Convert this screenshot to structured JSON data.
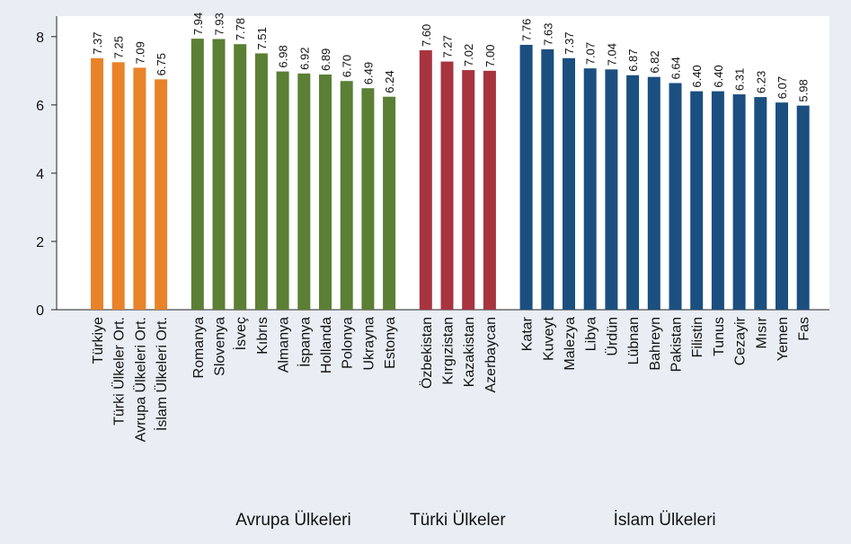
{
  "chart_data": {
    "type": "bar",
    "ylim": [
      0,
      8.6
    ],
    "yticks": [
      0,
      2,
      4,
      6,
      8
    ],
    "groups": [
      {
        "color": "#e8832a",
        "categories": [
          "Türkiye",
          "Türki Ülkeler Ort.",
          "Avrupa Ülkeleri Ort.",
          "İslam Ülkeleri Ort."
        ],
        "values": [
          7.37,
          7.25,
          7.09,
          6.75
        ],
        "value_labels": [
          "7.37",
          "7.25",
          "7.09",
          "6.75"
        ]
      },
      {
        "name": "Avrupa Ülkeleri",
        "color": "#5b7f35",
        "categories": [
          "Romanya",
          "Slovenya",
          "İsveç",
          "Kıbrıs",
          "Almanya",
          "İspanya",
          "Hollanda",
          "Polonya",
          "Ukrayna",
          "Estonya"
        ],
        "values": [
          7.94,
          7.93,
          7.78,
          7.51,
          6.98,
          6.92,
          6.89,
          6.7,
          6.49,
          6.24
        ],
        "value_labels": [
          "7.94",
          "7.93",
          "7.78",
          "7.51",
          "6.98",
          "6.92",
          "6.89",
          "6.70",
          "6.49",
          "6.24"
        ]
      },
      {
        "name": "Türki Ülkeler",
        "color": "#a8343f",
        "categories": [
          "Özbekistan",
          "Kırgızistan",
          "Kazakistan",
          "Azerbaycan"
        ],
        "values": [
          7.6,
          7.27,
          7.02,
          7.0
        ],
        "value_labels": [
          "7.60",
          "7.27",
          "7.02",
          "7.00"
        ]
      },
      {
        "name": "İslam Ülkeleri",
        "color": "#1b4f80",
        "categories": [
          "Katar",
          "Kuveyt",
          "Malezya",
          "Libya",
          "Ürdün",
          "Lübnan",
          "Bahreyn",
          "Pakistan",
          "Filistin",
          "Tunus",
          "Cezayir",
          "Mısır",
          "Yemen",
          "Fas"
        ],
        "values": [
          7.76,
          7.63,
          7.37,
          7.07,
          7.04,
          6.87,
          6.82,
          6.64,
          6.4,
          6.4,
          6.31,
          6.23,
          6.07,
          5.98
        ],
        "value_labels": [
          "7.76",
          "7.63",
          "7.37",
          "7.07",
          "7.04",
          "6.87",
          "6.82",
          "6.64",
          "6.40",
          "6.40",
          "6.31",
          "6.23",
          "6.07",
          "5.98"
        ]
      }
    ]
  }
}
